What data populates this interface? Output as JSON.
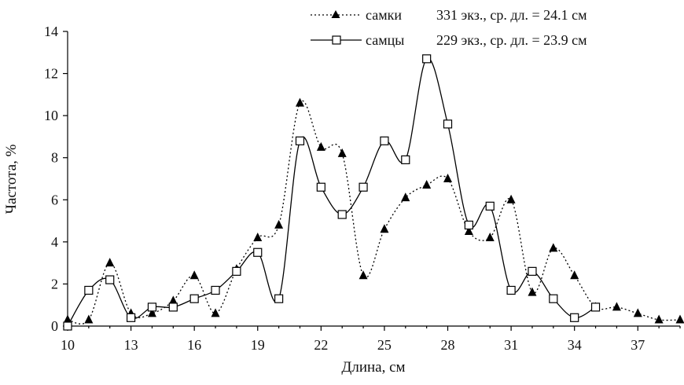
{
  "chart_data": {
    "type": "line",
    "xlabel": "Длина, см",
    "ylabel": "Частота, %",
    "xlim": [
      10,
      39
    ],
    "ylim": [
      0,
      14
    ],
    "x_ticks": [
      10,
      13,
      16,
      19,
      22,
      25,
      28,
      31,
      34,
      37
    ],
    "y_ticks": [
      0,
      2,
      4,
      6,
      8,
      10,
      12,
      14
    ],
    "x_tick_labels": [
      "10",
      "13",
      "16",
      "19",
      "22",
      "25",
      "28",
      "31",
      "34",
      "37"
    ],
    "y_tick_labels": [
      "0",
      "2",
      "4",
      "6",
      "8",
      "10",
      "12",
      "14"
    ],
    "grid": false,
    "legend_position": "top-right",
    "series": [
      {
        "name": "самки",
        "legend_info": "331 экз., ср. дл. = 24.1 см",
        "line_style": "dotted",
        "marker": "filled-triangle",
        "x": [
          10,
          11,
          12,
          13,
          14,
          15,
          16,
          17,
          18,
          19,
          20,
          21,
          22,
          23,
          24,
          25,
          26,
          27,
          28,
          29,
          30,
          31,
          32,
          33,
          34,
          35,
          36,
          37,
          38,
          39
        ],
        "values": [
          0.3,
          0.3,
          3.0,
          0.6,
          0.6,
          1.2,
          2.4,
          0.6,
          2.7,
          4.2,
          4.8,
          10.6,
          8.5,
          8.2,
          2.4,
          4.6,
          6.1,
          6.7,
          7.0,
          4.5,
          4.2,
          6.0,
          1.6,
          3.7,
          2.4,
          0.9,
          0.9,
          0.6,
          0.3,
          0.3
        ]
      },
      {
        "name": "самцы",
        "legend_info": "229 экз., ср. дл. = 23.9 см",
        "line_style": "solid",
        "marker": "open-square",
        "x": [
          10,
          11,
          12,
          13,
          14,
          15,
          16,
          17,
          18,
          19,
          20,
          21,
          22,
          23,
          24,
          25,
          26,
          27,
          28,
          29,
          30,
          31,
          32,
          33,
          34,
          35
        ],
        "values": [
          0.0,
          1.7,
          2.2,
          0.4,
          0.9,
          0.9,
          1.3,
          1.7,
          2.6,
          3.5,
          1.3,
          8.8,
          6.6,
          5.3,
          6.6,
          8.8,
          7.9,
          12.7,
          9.6,
          4.8,
          5.7,
          1.7,
          2.6,
          1.3,
          0.4,
          0.9
        ]
      }
    ]
  }
}
